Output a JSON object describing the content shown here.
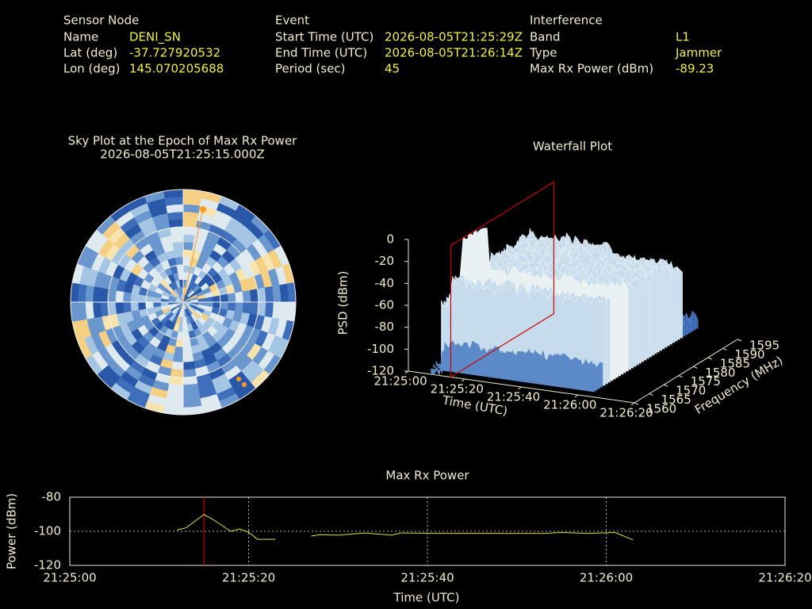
{
  "header": {
    "sensor": {
      "title": "Sensor Node",
      "rows": [
        [
          "Name",
          "DENI_SN"
        ],
        [
          "Lat (deg)",
          "-37.727920532"
        ],
        [
          "Lon (deg)",
          "145.070205688"
        ]
      ]
    },
    "event": {
      "title": "Event",
      "rows": [
        [
          "Start Time (UTC)",
          "2026-08-05T21:25:29Z"
        ],
        [
          "End Time (UTC)",
          "2026-08-05T21:26:14Z"
        ],
        [
          "Period (sec)",
          "45"
        ]
      ]
    },
    "interference": {
      "title": "Interference",
      "rows": [
        [
          "Band",
          "L1"
        ],
        [
          "Type",
          "Jammer"
        ],
        [
          "Max Rx Power (dBm)",
          "-89.23"
        ]
      ]
    }
  },
  "chart_data": [
    {
      "type": "polar-heatmap",
      "title": "Sky Plot at the Epoch of Max Rx Power",
      "subtitle": "2026-08-05T21:25:15.000Z"
    },
    {
      "type": "surface3d",
      "title": "Waterfall Plot",
      "xlabel": "Time (UTC)",
      "ylabel": "Frequency (MHz)",
      "zlabel": "PSD (dBm)",
      "xlim": [
        "21:25:00",
        "21:26:20"
      ],
      "xticks": [
        "21:25:00",
        "21:25:20",
        "21:25:40",
        "21:26:00",
        "21:26:20"
      ],
      "ylim": [
        1560,
        1595
      ],
      "yticks": [
        1560,
        1565,
        1570,
        1575,
        1580,
        1585,
        1590,
        1595
      ],
      "zlim": [
        -120,
        0
      ],
      "zticks": [
        0,
        -20,
        -40,
        -60,
        -80,
        -100,
        -120
      ],
      "marker": "21:25:15",
      "marker_color": "#cc0000"
    },
    {
      "type": "line",
      "title": "Max Rx Power",
      "xlabel": "Time (UTC)",
      "ylabel": "Power (dBm)",
      "x": [
        "21:25:12",
        "21:25:13",
        "21:25:15",
        "21:25:16",
        "21:25:18",
        "21:25:19",
        "21:25:20",
        "21:25:21",
        "21:25:23",
        "21:25:25",
        "21:25:27",
        "21:25:28",
        "21:25:30",
        "21:25:33",
        "21:25:36",
        "21:25:37",
        "21:25:42",
        "21:25:47",
        "21:25:53",
        "21:25:55",
        "21:25:58",
        "21:26:01",
        "21:26:03"
      ],
      "values": [
        -99.1,
        -98,
        -90.2,
        -93,
        -100,
        -98.6,
        -100.5,
        -104.7,
        -104.7,
        null,
        -102.8,
        -102,
        -102.3,
        -101,
        -102.3,
        -101,
        -101.2,
        -101.2,
        -101.2,
        -100.7,
        -101.2,
        -100.7,
        -105
      ],
      "color": "#e0e040",
      "xlim": [
        "21:25:00",
        "21:26:20"
      ],
      "xticks": [
        "21:25:00",
        "21:25:20",
        "21:25:40",
        "21:26:00",
        "21:26:20"
      ],
      "ylim": [
        -120,
        -80
      ],
      "yticks": [
        -80,
        -100,
        -120
      ],
      "grid": true,
      "marker": "21:25:15",
      "marker_color": "#cc0000"
    }
  ]
}
